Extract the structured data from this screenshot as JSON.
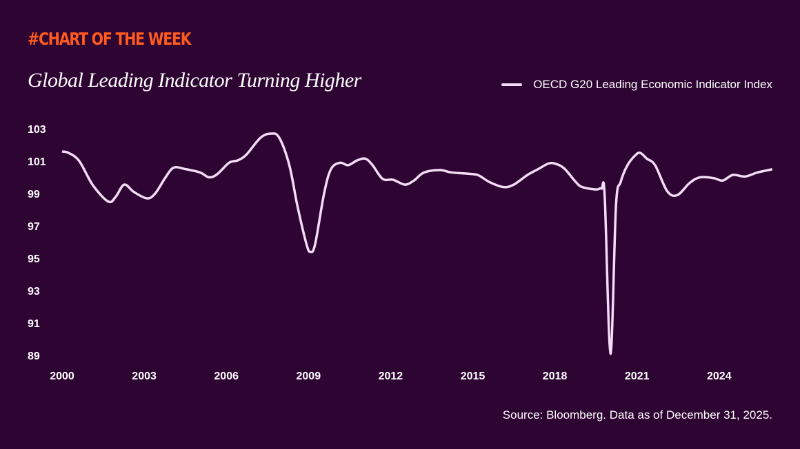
{
  "header": {
    "kicker": "#CHART OF THE WEEK",
    "title": "Global Leading Indicator Turning Higher"
  },
  "footer": {
    "source": "Source: Bloomberg. Data as of December 31, 2025."
  },
  "colors": {
    "background": "#2d0432",
    "accent": "#ff5a1f",
    "line": "#f3dcf5"
  },
  "chart_data": {
    "type": "line",
    "title": "Global Leading Indicator Turning Higher",
    "xlabel": "",
    "ylabel": "",
    "xlim": [
      2000,
      2026
    ],
    "ylim": [
      89,
      103
    ],
    "grid": false,
    "legend_position": "top-right",
    "x_ticks": [
      "2000",
      "2003",
      "2006",
      "2009",
      "2012",
      "2015",
      "2018",
      "2021",
      "2024"
    ],
    "y_ticks": [
      "103",
      "101",
      "99",
      "97",
      "95",
      "93",
      "91",
      "89"
    ],
    "series": [
      {
        "name": "OECD G20 Leading Economic Indicator Index",
        "x": [
          2000.0,
          2000.25,
          2000.63,
          2001.13,
          2001.69,
          2001.96,
          2002.27,
          2002.62,
          2003.1,
          2003.4,
          2003.78,
          2004.08,
          2004.53,
          2005.04,
          2005.37,
          2005.67,
          2006.1,
          2006.42,
          2006.73,
          2007.25,
          2007.63,
          2007.93,
          2008.3,
          2008.6,
          2008.93,
          2009.07,
          2009.24,
          2009.57,
          2009.82,
          2010.15,
          2010.45,
          2010.78,
          2011.08,
          2011.34,
          2011.71,
          2012.09,
          2012.52,
          2012.85,
          2013.22,
          2013.8,
          2014.23,
          2014.99,
          2015.24,
          2015.62,
          2016.12,
          2016.5,
          2017.0,
          2017.38,
          2017.76,
          2018.0,
          2018.34,
          2018.77,
          2019.0,
          2019.5,
          2019.7,
          2019.82,
          2020.03,
          2020.23,
          2020.4,
          2020.65,
          2020.96,
          2021.13,
          2021.36,
          2021.66,
          2022.1,
          2022.47,
          2022.92,
          2023.3,
          2023.8,
          2024.13,
          2024.5,
          2024.94,
          2025.4,
          2025.94
        ],
        "values": [
          101.6,
          101.5,
          101.0,
          99.5,
          98.5,
          98.8,
          99.55,
          99.1,
          98.7,
          99.0,
          100.0,
          100.6,
          100.5,
          100.3,
          100.0,
          100.2,
          100.9,
          101.05,
          101.4,
          102.45,
          102.7,
          102.45,
          100.75,
          98.2,
          95.85,
          95.4,
          95.85,
          99.0,
          100.5,
          100.9,
          100.75,
          101.05,
          101.15,
          100.75,
          99.9,
          99.85,
          99.55,
          99.8,
          100.3,
          100.45,
          100.3,
          100.2,
          100.1,
          99.7,
          99.4,
          99.55,
          100.15,
          100.5,
          100.85,
          100.85,
          100.55,
          99.7,
          99.4,
          99.25,
          99.3,
          98.8,
          89.1,
          98.2,
          99.7,
          100.75,
          101.4,
          101.5,
          101.15,
          100.75,
          99.15,
          98.9,
          99.65,
          100.0,
          99.95,
          99.8,
          100.15,
          100.05,
          100.3,
          100.5
        ]
      }
    ]
  }
}
